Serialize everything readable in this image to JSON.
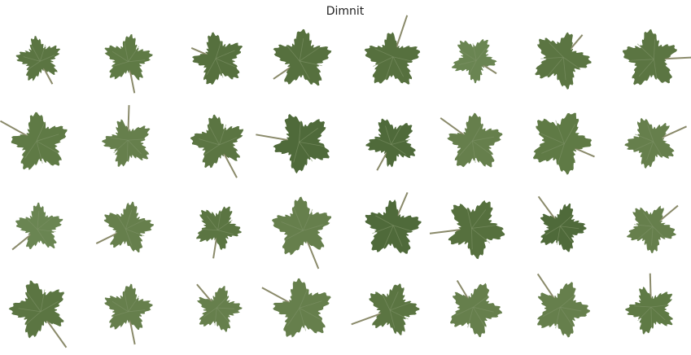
{
  "title": "Dimnit"
}
